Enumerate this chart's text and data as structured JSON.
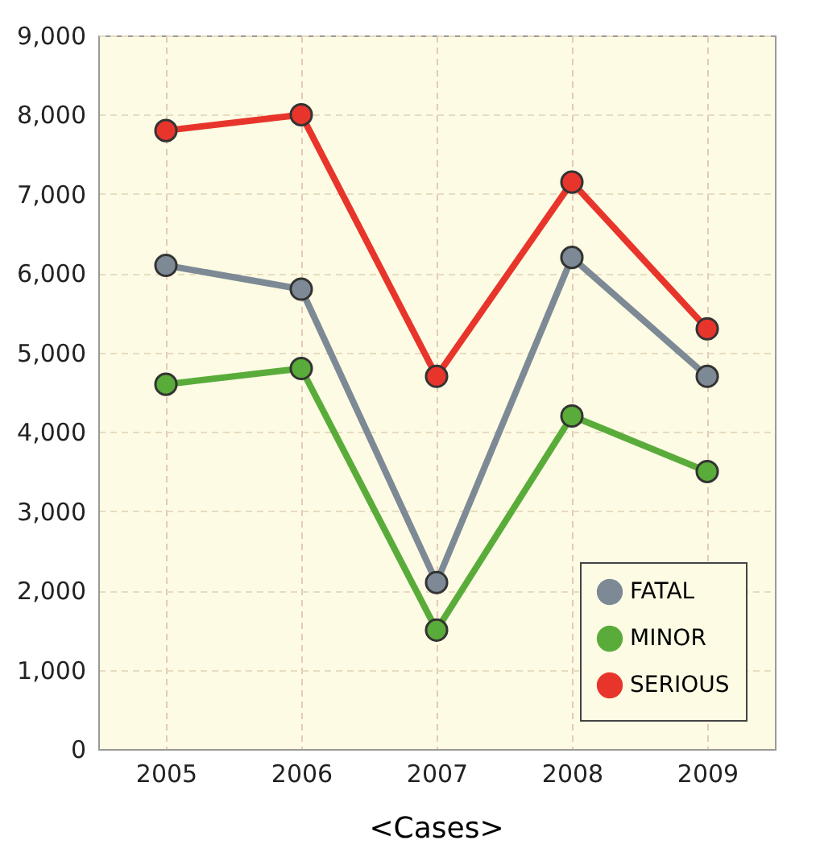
{
  "chart_data": {
    "type": "line",
    "categories": [
      "2005",
      "2006",
      "2007",
      "2008",
      "2009"
    ],
    "series": [
      {
        "name": "FATAL",
        "color": "#7d8a96",
        "values": [
          6100,
          5800,
          2100,
          6200,
          4700
        ]
      },
      {
        "name": "MINOR",
        "color": "#5aac3a",
        "values": [
          4600,
          4800,
          1500,
          4200,
          3500
        ]
      },
      {
        "name": "SERIOUS",
        "color": "#e8352b",
        "values": [
          7800,
          8000,
          4700,
          7150,
          5300
        ]
      }
    ],
    "ylim": [
      0,
      9000
    ],
    "yticks": [
      0,
      {
        "value": 1000,
        "label": "1,000"
      },
      {
        "value": 2000,
        "label": "2,000"
      },
      {
        "value": 3000,
        "label": "3,000"
      },
      {
        "value": 4000,
        "label": "4,000"
      },
      {
        "value": 5000,
        "label": "5,000"
      },
      {
        "value": 6000,
        "label": "6,000"
      },
      {
        "value": 7000,
        "label": "7,000"
      },
      {
        "value": 8000,
        "label": "8,000"
      },
      {
        "value": 9000,
        "label": "9,000"
      }
    ],
    "grid": true,
    "legend": "bottom right",
    "marker": "circle",
    "line_style": "solid",
    "annotations": [
      "<Cases>"
    ]
  }
}
